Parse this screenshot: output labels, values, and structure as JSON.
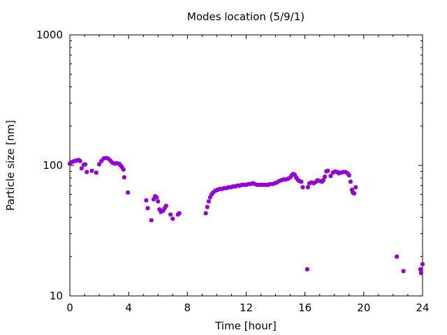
{
  "chart_data": {
    "type": "scatter",
    "title": "Modes location (5/9/1)",
    "xlabel": "Time [hour]",
    "ylabel": "Particle size [nm]",
    "xlim": [
      0,
      24
    ],
    "ylim": [
      10,
      1000
    ],
    "yscale": "log",
    "grid": false,
    "legend": "none",
    "x_ticks": [
      0,
      4,
      8,
      12,
      16,
      20,
      24
    ],
    "x_tick_labels": [
      "0",
      "4",
      "8",
      "12",
      "16",
      "20",
      "24"
    ],
    "y_ticks": [
      10,
      100,
      1000
    ],
    "y_tick_labels": [
      "10",
      "100",
      "1000"
    ],
    "marker_color": "#9400d3",
    "points": [
      [
        0.0,
        103
      ],
      [
        0.15,
        106
      ],
      [
        0.3,
        108
      ],
      [
        0.45,
        109
      ],
      [
        0.6,
        110
      ],
      [
        0.7,
        108
      ],
      [
        0.8,
        95
      ],
      [
        0.95,
        101
      ],
      [
        1.05,
        102
      ],
      [
        1.15,
        89
      ],
      [
        1.5,
        91
      ],
      [
        1.8,
        88
      ],
      [
        2.0,
        102
      ],
      [
        2.15,
        108
      ],
      [
        2.3,
        113
      ],
      [
        2.45,
        114
      ],
      [
        2.6,
        113
      ],
      [
        2.75,
        109
      ],
      [
        2.9,
        105
      ],
      [
        3.05,
        103
      ],
      [
        3.2,
        104
      ],
      [
        3.35,
        103
      ],
      [
        3.45,
        100
      ],
      [
        3.55,
        97
      ],
      [
        3.65,
        93
      ],
      [
        3.7,
        81
      ],
      [
        3.95,
        62
      ],
      [
        5.2,
        54
      ],
      [
        5.3,
        47
      ],
      [
        5.55,
        38
      ],
      [
        5.7,
        55
      ],
      [
        5.8,
        58
      ],
      [
        5.9,
        57
      ],
      [
        6.0,
        53
      ],
      [
        6.1,
        46
      ],
      [
        6.2,
        44
      ],
      [
        6.35,
        45
      ],
      [
        6.45,
        47
      ],
      [
        6.55,
        49
      ],
      [
        6.85,
        42
      ],
      [
        7.0,
        39
      ],
      [
        7.35,
        42
      ],
      [
        7.45,
        43
      ],
      [
        9.25,
        43
      ],
      [
        9.35,
        48
      ],
      [
        9.45,
        53
      ],
      [
        9.55,
        57
      ],
      [
        9.65,
        60
      ],
      [
        9.75,
        62
      ],
      [
        9.9,
        64
      ],
      [
        10.05,
        65
      ],
      [
        10.2,
        66
      ],
      [
        10.35,
        66
      ],
      [
        10.5,
        67
      ],
      [
        10.65,
        67
      ],
      [
        10.8,
        68
      ],
      [
        10.95,
        68
      ],
      [
        11.1,
        69
      ],
      [
        11.25,
        69
      ],
      [
        11.4,
        70
      ],
      [
        11.55,
        70
      ],
      [
        11.7,
        71
      ],
      [
        11.85,
        71
      ],
      [
        12.0,
        71
      ],
      [
        12.15,
        72
      ],
      [
        12.3,
        72
      ],
      [
        12.45,
        73
      ],
      [
        12.6,
        72
      ],
      [
        12.75,
        71
      ],
      [
        12.9,
        71
      ],
      [
        13.05,
        71
      ],
      [
        13.2,
        71
      ],
      [
        13.35,
        71
      ],
      [
        13.5,
        71
      ],
      [
        13.65,
        72
      ],
      [
        13.8,
        72
      ],
      [
        13.95,
        73
      ],
      [
        14.1,
        74
      ],
      [
        14.25,
        76
      ],
      [
        14.4,
        77
      ],
      [
        14.55,
        78
      ],
      [
        14.7,
        78
      ],
      [
        14.85,
        79
      ],
      [
        15.0,
        81
      ],
      [
        15.1,
        84
      ],
      [
        15.2,
        86
      ],
      [
        15.3,
        85
      ],
      [
        15.4,
        81
      ],
      [
        15.5,
        78
      ],
      [
        15.6,
        76
      ],
      [
        15.75,
        75
      ],
      [
        15.85,
        68
      ],
      [
        16.15,
        16
      ],
      [
        16.2,
        68
      ],
      [
        16.3,
        73
      ],
      [
        16.45,
        74
      ],
      [
        16.6,
        73
      ],
      [
        16.75,
        75
      ],
      [
        16.85,
        77
      ],
      [
        17.0,
        76
      ],
      [
        17.15,
        75
      ],
      [
        17.25,
        77
      ],
      [
        17.35,
        82
      ],
      [
        17.45,
        90
      ],
      [
        17.55,
        91
      ],
      [
        17.75,
        83
      ],
      [
        17.9,
        88
      ],
      [
        18.05,
        90
      ],
      [
        18.2,
        89
      ],
      [
        18.3,
        87
      ],
      [
        18.45,
        88
      ],
      [
        18.6,
        89
      ],
      [
        18.75,
        89
      ],
      [
        18.9,
        87
      ],
      [
        19.0,
        84
      ],
      [
        19.1,
        75
      ],
      [
        19.2,
        65
      ],
      [
        19.25,
        62
      ],
      [
        19.35,
        61
      ],
      [
        19.45,
        68
      ],
      [
        22.25,
        20
      ],
      [
        22.7,
        15.5
      ],
      [
        23.85,
        16
      ],
      [
        23.9,
        15
      ],
      [
        24.0,
        17.5
      ]
    ]
  }
}
